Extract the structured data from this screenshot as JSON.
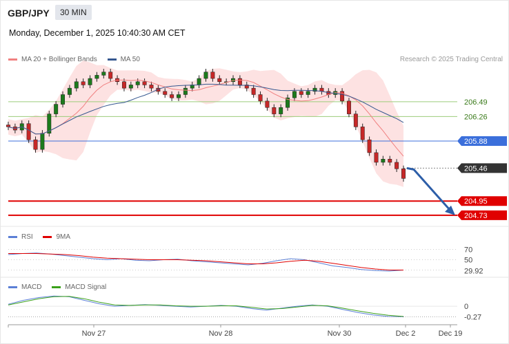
{
  "header": {
    "symbol": "GBP/JPY",
    "interval": "30 MIN",
    "datetime": "Monday, December 1, 2025 10:40:30 AM CET",
    "credit": "Research © 2025 Trading Central"
  },
  "legends": {
    "main": [
      {
        "label": "MA 20 + Bollinger Bands",
        "color": "#f08080"
      },
      {
        "label": "MA 50",
        "color": "#35578f"
      }
    ],
    "rsi": [
      {
        "label": "RSI",
        "color": "#5b7fd6"
      },
      {
        "label": "9MA",
        "color": "#e00000"
      }
    ],
    "macd": [
      {
        "label": "MACD",
        "color": "#5b7fd6"
      },
      {
        "label": "MACD Signal",
        "color": "#3aa01a"
      }
    ]
  },
  "colors": {
    "resistance": "#9ccc7a",
    "pivot": "#3b6fdb",
    "support": "#e00000",
    "current": "#333333",
    "arrow": "#2d5ea8",
    "candle_up": "#1c7a1c",
    "candle_down": "#c62828",
    "band_fill": "#fde2e2"
  },
  "chart_data": [
    {
      "type": "candlestick",
      "title": "GBP/JPY",
      "ylim": [
        204.6,
        207.0
      ],
      "x_ticks": [
        "Nov 27",
        "Nov 28",
        "Nov 30",
        "Dec 2",
        "Dec 19"
      ],
      "levels": [
        {
          "label": "206.49",
          "value": 206.49,
          "kind": "resistance"
        },
        {
          "label": "206.26",
          "value": 206.26,
          "kind": "resistance"
        },
        {
          "label": "205.88",
          "value": 205.88,
          "kind": "pivot"
        },
        {
          "label": "205.46",
          "value": 205.46,
          "kind": "current"
        },
        {
          "label": "204.95",
          "value": 204.95,
          "kind": "support"
        },
        {
          "label": "204.73",
          "value": 204.73,
          "kind": "support"
        }
      ],
      "close_series": [
        206.1,
        206.05,
        206.15,
        205.9,
        205.75,
        206.0,
        206.3,
        206.45,
        206.6,
        206.7,
        206.8,
        206.75,
        206.85,
        206.9,
        206.95,
        206.85,
        206.8,
        206.7,
        206.75,
        206.8,
        206.75,
        206.7,
        206.65,
        206.6,
        206.55,
        206.6,
        206.7,
        206.75,
        206.85,
        206.95,
        206.85,
        206.8,
        206.8,
        206.85,
        206.75,
        206.7,
        206.6,
        206.5,
        206.4,
        206.3,
        206.4,
        206.55,
        206.65,
        206.6,
        206.65,
        206.7,
        206.65,
        206.6,
        206.65,
        206.5,
        206.3,
        206.1,
        205.9,
        205.7,
        205.55,
        205.6,
        205.55,
        205.45,
        205.3
      ]
    },
    {
      "type": "line",
      "title": "RSI",
      "ylim": [
        20,
        80
      ],
      "y_ticks": [
        70,
        50
      ],
      "last_value_label": "29.92",
      "series": [
        {
          "name": "RSI",
          "values": [
            60,
            62,
            63,
            61,
            58,
            55,
            52,
            50,
            52,
            49,
            48,
            50,
            51,
            48,
            46,
            44,
            42,
            40,
            43,
            48,
            52,
            50,
            44,
            38,
            35,
            31,
            29,
            28,
            30
          ]
        },
        {
          "name": "9MA",
          "values": [
            62,
            62,
            62,
            61,
            60,
            58,
            55,
            53,
            52,
            51,
            50,
            50,
            50,
            49,
            48,
            46,
            44,
            42,
            42,
            44,
            47,
            49,
            47,
            43,
            39,
            35,
            32,
            30,
            30
          ]
        }
      ]
    },
    {
      "type": "line",
      "title": "MACD",
      "ylim": [
        -0.4,
        0.35
      ],
      "y_ticks": [
        0
      ],
      "last_value_label": "-0.27",
      "series": [
        {
          "name": "MACD",
          "values": [
            0.05,
            0.15,
            0.22,
            0.26,
            0.24,
            0.15,
            0.06,
            0.0,
            0.02,
            0.04,
            0.02,
            0.0,
            -0.02,
            0.0,
            0.02,
            0.0,
            -0.06,
            -0.1,
            -0.05,
            0.0,
            0.03,
            0.0,
            -0.08,
            -0.16,
            -0.22,
            -0.26,
            -0.27
          ]
        },
        {
          "name": "MACD Signal",
          "values": [
            0.03,
            0.11,
            0.19,
            0.24,
            0.25,
            0.19,
            0.1,
            0.03,
            0.02,
            0.03,
            0.03,
            0.01,
            0.0,
            0.0,
            0.01,
            0.01,
            -0.03,
            -0.07,
            -0.06,
            -0.02,
            0.02,
            0.01,
            -0.05,
            -0.12,
            -0.18,
            -0.23,
            -0.26
          ]
        }
      ]
    }
  ]
}
